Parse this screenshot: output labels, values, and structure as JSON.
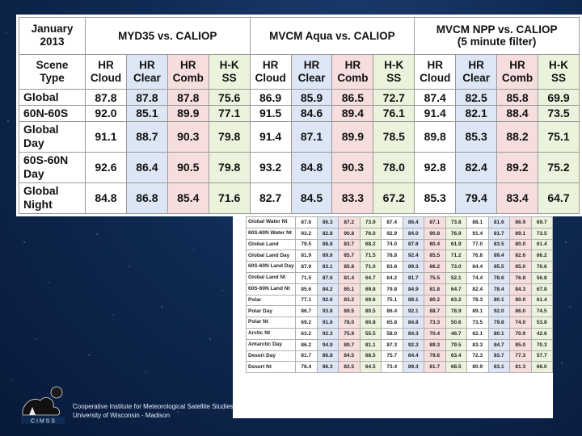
{
  "main_table": {
    "corner": [
      "January",
      "2013"
    ],
    "scene_type_label": [
      "Scene",
      "Type"
    ],
    "groups": [
      "MYD35 vs. CALIOP",
      "MVCM Aqua vs. CALIOP",
      "MVCM NPP vs. CALIOP (5 minute filter)"
    ],
    "group_lines": [
      [
        "MYD35 vs. CALIOP"
      ],
      [
        "MVCM Aqua vs. CALIOP"
      ],
      [
        "MVCM NPP vs. CALIOP",
        "(5 minute filter)"
      ]
    ],
    "metrics": [
      [
        "HR",
        "Cloud"
      ],
      [
        "HR",
        "Clear"
      ],
      [
        "HR",
        "Comb"
      ],
      [
        "H-K",
        "SS"
      ]
    ],
    "rows": [
      {
        "label": [
          "Global"
        ],
        "values": [
          "87.8",
          "87.8",
          "87.8",
          "75.6",
          "86.9",
          "85.9",
          "86.5",
          "72.7",
          "87.4",
          "82.5",
          "85.8",
          "69.9"
        ]
      },
      {
        "label": [
          "60N-60S"
        ],
        "values": [
          "92.0",
          "85.1",
          "89.9",
          "77.1",
          "91.5",
          "84.6",
          "89.4",
          "76.1",
          "91.4",
          "82.1",
          "88.4",
          "73.5"
        ]
      },
      {
        "label": [
          "Global",
          "Day"
        ],
        "values": [
          "91.1",
          "88.7",
          "90.3",
          "79.8",
          "91.4",
          "87.1",
          "89.9",
          "78.5",
          "89.8",
          "85.3",
          "88.2",
          "75.1"
        ]
      },
      {
        "label": [
          "60S-60N",
          "Day"
        ],
        "values": [
          "92.6",
          "86.4",
          "90.5",
          "79.8",
          "93.2",
          "84.8",
          "90.3",
          "78.0",
          "92.8",
          "82.4",
          "89.2",
          "75.2"
        ]
      },
      {
        "label": [
          "Global",
          "Night"
        ],
        "values": [
          "84.8",
          "86.8",
          "85.4",
          "71.6",
          "82.7",
          "84.5",
          "83.3",
          "67.2",
          "85.3",
          "79.4",
          "83.4",
          "64.7"
        ]
      }
    ]
  },
  "small_table": {
    "rows": [
      {
        "label": "Global Water Nt",
        "values": [
          "87.6",
          "86.3",
          "87.2",
          "73.9",
          "87.4",
          "86.4",
          "87.1",
          "73.8",
          "88.1",
          "81.6",
          "86.9",
          "69.7"
        ]
      },
      {
        "label": "60S-60N Water Nt",
        "values": [
          "93.2",
          "82.8",
          "90.8",
          "76.0",
          "92.9",
          "84.0",
          "90.8",
          "76.9",
          "91.4",
          "81.7",
          "89.1",
          "73.5"
        ]
      },
      {
        "label": "Global Land",
        "values": [
          "79.5",
          "88.8",
          "83.7",
          "68.2",
          "74.0",
          "87.8",
          "80.4",
          "61.9",
          "77.0",
          "83.5",
          "80.0",
          "61.4"
        ]
      },
      {
        "label": "Global Land Day",
        "values": [
          "81.9",
          "89.6",
          "85.7",
          "71.5",
          "78.8",
          "92.4",
          "85.5",
          "71.2",
          "76.8",
          "89.4",
          "82.6",
          "66.2"
        ]
      },
      {
        "label": "60S-60N Land Day",
        "values": [
          "87.9",
          "83.1",
          "85.8",
          "71.0",
          "83.8",
          "89.3",
          "86.2",
          "73.0",
          "84.4",
          "85.5",
          "85.0",
          "70.6"
        ]
      },
      {
        "label": "Global Land Nt",
        "values": [
          "71.5",
          "87.6",
          "81.4",
          "64.7",
          "64.2",
          "81.7",
          "75.5",
          "52.1",
          "74.4",
          "78.6",
          "76.8",
          "56.8"
        ]
      },
      {
        "label": "60S-60N Land Nt",
        "values": [
          "85.6",
          "84.2",
          "85.1",
          "69.8",
          "79.8",
          "84.9",
          "81.8",
          "64.7",
          "82.4",
          "78.4",
          "84.3",
          "67.8"
        ]
      },
      {
        "label": "Polar",
        "values": [
          "77.1",
          "92.6",
          "83.2",
          "69.6",
          "75.1",
          "88.1",
          "80.2",
          "63.2",
          "78.3",
          "80.1",
          "80.0",
          "61.4"
        ]
      },
      {
        "label": "Polar Day",
        "values": [
          "86.7",
          "93.8",
          "89.5",
          "80.5",
          "86.4",
          "92.1",
          "88.7",
          "78.9",
          "89.1",
          "92.0",
          "86.0",
          "74.5"
        ]
      },
      {
        "label": "Polar Nt",
        "values": [
          "69.2",
          "91.6",
          "78.0",
          "60.8",
          "65.8",
          "84.8",
          "73.3",
          "50.6",
          "73.5",
          "79.8",
          "74.0",
          "53.8"
        ]
      },
      {
        "label": "Arctic Nt",
        "values": [
          "63.2",
          "92.3",
          "75.9",
          "55.5",
          "58.0",
          "84.3",
          "70.4",
          "46.7",
          "62.1",
          "80.1",
          "70.9",
          "42.6"
        ]
      },
      {
        "label": "Antarctic Day",
        "values": [
          "86.2",
          "94.9",
          "89.7",
          "81.1",
          "87.3",
          "92.3",
          "89.3",
          "79.5",
          "83.3",
          "84.7",
          "85.0",
          "70.3"
        ]
      },
      {
        "label": "Desert Day",
        "values": [
          "81.7",
          "86.8",
          "84.5",
          "68.5",
          "75.7",
          "84.4",
          "79.6",
          "63.4",
          "72.3",
          "83.7",
          "77.3",
          "57.7"
        ]
      },
      {
        "label": "Desert Nt",
        "values": [
          "78.4",
          "86.3",
          "82.5",
          "64.5",
          "73.4",
          "89.3",
          "81.7",
          "68.5",
          "80.9",
          "83.1",
          "81.3",
          "66.0"
        ]
      }
    ]
  },
  "footer": {
    "line1": "Cooperative Institute for Meteorological Satellite Studies",
    "line2": "University of Wisconsin - Madison"
  },
  "logo": {
    "text": "C I M S S",
    "icon": "cimss-logo-icon"
  },
  "colors": {
    "background": "#0f2a52",
    "clear_col": "#dce6f4",
    "comb_col": "#f6dede",
    "ss_col": "#ecf3dc",
    "clear_text": "#3b66b8",
    "comb_text": "#c02a2a",
    "ss_text": "#3f8a1a"
  }
}
